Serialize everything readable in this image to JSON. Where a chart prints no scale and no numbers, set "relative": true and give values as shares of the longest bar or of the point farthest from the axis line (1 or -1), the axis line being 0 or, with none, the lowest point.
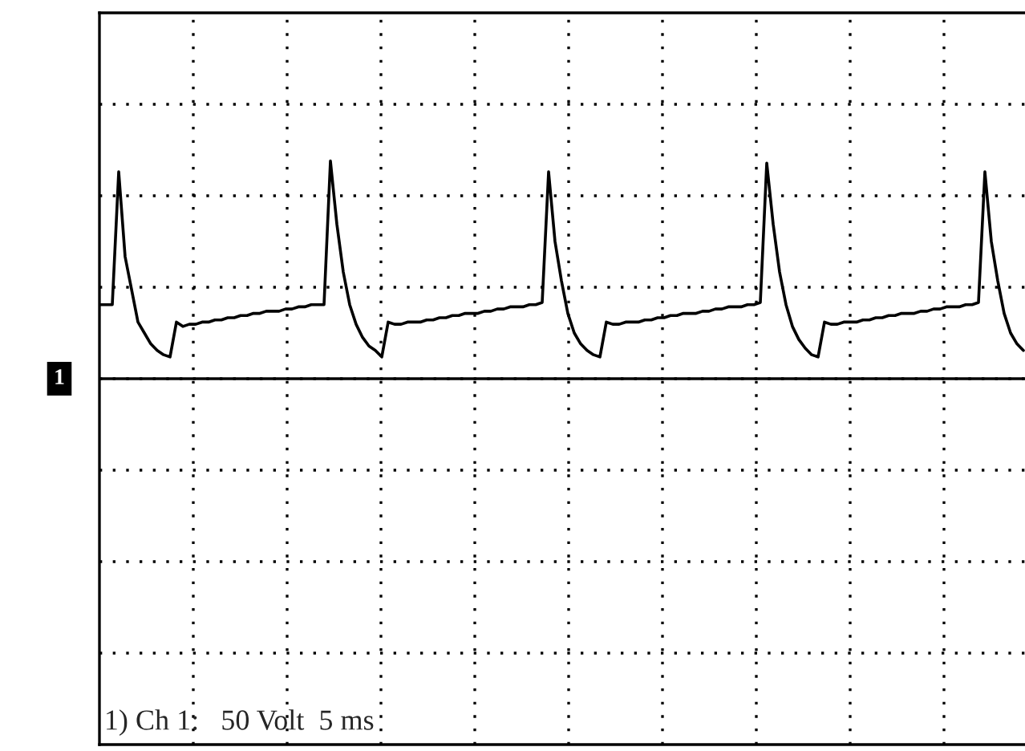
{
  "chart_data": {
    "type": "line",
    "relative": true,
    "color": "#000000",
    "grid": true,
    "legend": false,
    "marker": "none",
    "line_style": "solid",
    "categories": [
      null,
      null,
      null,
      null,
      null,
      null,
      null,
      null,
      null,
      null,
      null,
      null,
      null,
      null,
      null,
      null,
      null,
      null,
      null,
      null,
      null,
      null,
      null,
      null,
      null,
      null,
      null,
      null,
      null,
      null,
      null,
      null,
      null,
      null,
      null,
      null,
      null,
      null,
      null,
      null,
      null,
      null,
      null,
      null,
      null,
      null,
      null,
      null,
      null,
      null,
      null,
      null,
      null,
      null,
      null,
      null,
      null,
      null,
      null,
      null,
      null,
      null,
      null,
      null,
      null,
      null,
      null,
      null,
      null,
      null,
      null,
      null,
      null,
      null,
      null,
      null,
      null,
      null,
      null,
      null,
      null,
      null,
      null,
      null,
      null,
      null,
      null,
      null,
      null,
      null,
      null,
      null,
      null,
      null,
      null,
      null,
      null,
      null,
      null,
      null,
      null,
      null,
      null,
      null,
      null,
      null,
      null,
      null,
      null,
      null,
      null,
      null,
      null,
      null,
      null,
      null,
      null,
      null,
      null,
      null,
      null,
      null,
      null,
      null,
      null,
      null,
      null,
      null,
      null,
      null,
      null,
      null,
      null,
      null,
      null,
      null,
      null,
      null,
      null,
      null,
      null,
      null,
      null,
      null,
      null
    ],
    "values": [
      0.34,
      0.34,
      0.34,
      0.95,
      0.56,
      0.41,
      0.26,
      0.21,
      0.16,
      0.13,
      0.11,
      0.1,
      0.26,
      0.24,
      0.25,
      0.25,
      0.26,
      0.26,
      0.27,
      0.27,
      0.28,
      0.28,
      0.29,
      0.29,
      0.3,
      0.3,
      0.31,
      0.31,
      0.31,
      0.32,
      0.32,
      0.33,
      0.33,
      0.34,
      0.34,
      0.34,
      1.0,
      0.71,
      0.49,
      0.34,
      0.25,
      0.19,
      0.15,
      0.13,
      0.1,
      0.26,
      0.25,
      0.25,
      0.26,
      0.26,
      0.26,
      0.27,
      0.27,
      0.28,
      0.28,
      0.29,
      0.29,
      0.3,
      0.3,
      0.3,
      0.31,
      0.31,
      0.32,
      0.32,
      0.33,
      0.33,
      0.33,
      0.34,
      0.34,
      0.35,
      0.95,
      0.63,
      0.45,
      0.3,
      0.21,
      0.16,
      0.13,
      0.11,
      0.1,
      0.26,
      0.25,
      0.25,
      0.26,
      0.26,
      0.26,
      0.27,
      0.27,
      0.28,
      0.28,
      0.29,
      0.29,
      0.3,
      0.3,
      0.3,
      0.31,
      0.31,
      0.32,
      0.32,
      0.33,
      0.33,
      0.33,
      0.34,
      0.34,
      0.35,
      0.99,
      0.71,
      0.49,
      0.34,
      0.24,
      0.18,
      0.14,
      0.11,
      0.1,
      0.26,
      0.25,
      0.25,
      0.26,
      0.26,
      0.26,
      0.27,
      0.27,
      0.28,
      0.28,
      0.29,
      0.29,
      0.3,
      0.3,
      0.3,
      0.31,
      0.31,
      0.32,
      0.32,
      0.33,
      0.33,
      0.33,
      0.34,
      0.34,
      0.35,
      0.95,
      0.63,
      0.45,
      0.3,
      0.21,
      0.16,
      0.13
    ],
    "annotations": [
      "1",
      "1) Ch 1:   50 Volt  5 ms"
    ]
  }
}
